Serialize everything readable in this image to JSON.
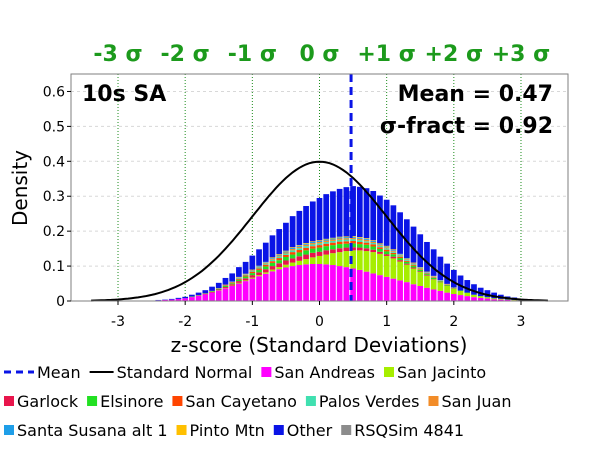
{
  "chart_data": {
    "type": "histogram",
    "xlabel": "z-score (Standard Deviations)",
    "ylabel": "Density",
    "xlim": [
      -3.7,
      3.7
    ],
    "ylim": [
      0,
      0.65
    ],
    "xticks": [
      -3,
      -2,
      -1,
      0,
      1,
      2,
      3
    ],
    "yticks": [
      0,
      0.1,
      0.2,
      0.3,
      0.4,
      0.5,
      0.6
    ],
    "bin_width": 0.1,
    "grid": "horizontal dashed, vertical dotted green at sigma levels",
    "sigma_labels": [
      {
        "z": -3,
        "text": "-3 σ"
      },
      {
        "z": -2,
        "text": "-2 σ"
      },
      {
        "z": -1,
        "text": "-1 σ"
      },
      {
        "z": 0,
        "text": "0 σ"
      },
      {
        "z": 1,
        "text": "+1 σ"
      },
      {
        "z": 2,
        "text": "+2 σ"
      },
      {
        "z": 3,
        "text": "+3 σ"
      }
    ],
    "annotations": {
      "period": "10s SA",
      "mean": "Mean = 0.47",
      "sigma": "σ-fract = 0.92"
    },
    "mean_value": 0.47,
    "curve": "Standard Normal",
    "bins_x": [
      -2.4,
      -2.3,
      -2.2,
      -2.1,
      -2.0,
      -1.9,
      -1.8,
      -1.7,
      -1.6,
      -1.5,
      -1.4,
      -1.3,
      -1.2,
      -1.1,
      -1.0,
      -0.9,
      -0.8,
      -0.7,
      -0.6,
      -0.5,
      -0.4,
      -0.3,
      -0.2,
      -0.1,
      0.0,
      0.1,
      0.2,
      0.3,
      0.4,
      0.5,
      0.6,
      0.7,
      0.8,
      0.9,
      1.0,
      1.1,
      1.2,
      1.3,
      1.4,
      1.5,
      1.6,
      1.7,
      1.8,
      1.9,
      2.0,
      2.1,
      2.2,
      2.3,
      2.4,
      2.5,
      2.6,
      2.7,
      2.8,
      2.9
    ],
    "series": [
      {
        "name": "San Andreas",
        "color": "#ff00ff",
        "values": [
          0.002,
          0.003,
          0.004,
          0.006,
          0.008,
          0.011,
          0.015,
          0.019,
          0.024,
          0.03,
          0.036,
          0.043,
          0.05,
          0.057,
          0.064,
          0.071,
          0.078,
          0.085,
          0.091,
          0.096,
          0.1,
          0.103,
          0.105,
          0.106,
          0.106,
          0.105,
          0.103,
          0.1,
          0.097,
          0.093,
          0.089,
          0.084,
          0.079,
          0.074,
          0.069,
          0.064,
          0.059,
          0.054,
          0.048,
          0.043,
          0.038,
          0.033,
          0.029,
          0.024,
          0.02,
          0.017,
          0.014,
          0.011,
          0.009,
          0.007,
          0.005,
          0.004,
          0.003,
          0.002
        ]
      },
      {
        "name": "San Jacinto",
        "color": "#a6ee00",
        "values": [
          0,
          0,
          0,
          0,
          0,
          0,
          0,
          0,
          0,
          0.001,
          0.001,
          0.001,
          0.002,
          0.002,
          0.003,
          0.003,
          0.004,
          0.005,
          0.006,
          0.008,
          0.01,
          0.012,
          0.015,
          0.019,
          0.023,
          0.028,
          0.034,
          0.04,
          0.046,
          0.052,
          0.056,
          0.059,
          0.061,
          0.061,
          0.06,
          0.058,
          0.054,
          0.05,
          0.045,
          0.04,
          0.034,
          0.029,
          0.024,
          0.019,
          0.015,
          0.012,
          0.009,
          0.007,
          0.005,
          0.004,
          0.003,
          0.002,
          0.001,
          0.001
        ]
      },
      {
        "name": "Garlock",
        "color": "#e8154c",
        "values": [
          0,
          0,
          0,
          0,
          0,
          0.001,
          0.001,
          0.001,
          0.002,
          0.002,
          0.003,
          0.004,
          0.005,
          0.006,
          0.007,
          0.008,
          0.009,
          0.01,
          0.011,
          0.012,
          0.012,
          0.013,
          0.013,
          0.013,
          0.012,
          0.012,
          0.011,
          0.011,
          0.01,
          0.009,
          0.008,
          0.008,
          0.007,
          0.006,
          0.005,
          0.005,
          0.004,
          0.003,
          0.003,
          0.002,
          0.002,
          0.001,
          0.001,
          0.001,
          0.001,
          0,
          0,
          0,
          0,
          0,
          0,
          0,
          0,
          0
        ]
      },
      {
        "name": "Elsinore",
        "color": "#22e022",
        "values": [
          0,
          0,
          0,
          0,
          0,
          0.001,
          0.001,
          0.001,
          0.002,
          0.002,
          0.003,
          0.003,
          0.004,
          0.005,
          0.006,
          0.007,
          0.008,
          0.009,
          0.009,
          0.01,
          0.011,
          0.011,
          0.012,
          0.012,
          0.012,
          0.012,
          0.012,
          0.012,
          0.011,
          0.011,
          0.01,
          0.01,
          0.009,
          0.008,
          0.008,
          0.007,
          0.006,
          0.005,
          0.005,
          0.004,
          0.003,
          0.003,
          0.002,
          0.002,
          0.001,
          0.001,
          0.001,
          0,
          0,
          0,
          0,
          0,
          0,
          0
        ]
      },
      {
        "name": "San Cayetano",
        "color": "#ff4500",
        "values": [
          0,
          0,
          0,
          0,
          0,
          0,
          0,
          0.001,
          0.001,
          0.001,
          0.002,
          0.002,
          0.003,
          0.003,
          0.004,
          0.004,
          0.005,
          0.005,
          0.006,
          0.006,
          0.007,
          0.007,
          0.007,
          0.007,
          0.007,
          0.007,
          0.007,
          0.007,
          0.007,
          0.007,
          0.006,
          0.006,
          0.006,
          0.005,
          0.005,
          0.004,
          0.004,
          0.003,
          0.003,
          0.002,
          0.002,
          0.002,
          0.001,
          0.001,
          0.001,
          0,
          0,
          0,
          0,
          0,
          0,
          0,
          0,
          0
        ]
      },
      {
        "name": "Palos Verdes",
        "color": "#40e0b0",
        "values": [
          0,
          0,
          0,
          0,
          0,
          0,
          0,
          0,
          0,
          0.001,
          0.001,
          0.001,
          0.002,
          0.002,
          0.002,
          0.003,
          0.003,
          0.004,
          0.004,
          0.004,
          0.005,
          0.005,
          0.005,
          0.005,
          0.005,
          0.005,
          0.005,
          0.005,
          0.005,
          0.005,
          0.005,
          0.004,
          0.004,
          0.004,
          0.004,
          0.003,
          0.003,
          0.003,
          0.002,
          0.002,
          0.002,
          0.001,
          0.001,
          0.001,
          0.001,
          0,
          0,
          0,
          0,
          0,
          0,
          0,
          0,
          0
        ]
      },
      {
        "name": "San Juan",
        "color": "#f28c28",
        "values": [
          0,
          0,
          0,
          0,
          0,
          0,
          0,
          0,
          0,
          0,
          0.001,
          0.001,
          0.001,
          0.001,
          0.002,
          0.002,
          0.002,
          0.003,
          0.003,
          0.003,
          0.004,
          0.004,
          0.004,
          0.004,
          0.004,
          0.004,
          0.004,
          0.004,
          0.004,
          0.004,
          0.004,
          0.004,
          0.003,
          0.003,
          0.003,
          0.003,
          0.002,
          0.002,
          0.002,
          0.002,
          0.001,
          0.001,
          0.001,
          0.001,
          0,
          0,
          0,
          0,
          0,
          0,
          0,
          0,
          0,
          0
        ]
      },
      {
        "name": "Santa Susana alt 1",
        "color": "#1e9ee8",
        "values": [
          0,
          0,
          0,
          0,
          0,
          0,
          0,
          0,
          0,
          0,
          0,
          0.001,
          0.001,
          0.001,
          0.001,
          0.002,
          0.002,
          0.002,
          0.002,
          0.003,
          0.003,
          0.003,
          0.003,
          0.003,
          0.003,
          0.003,
          0.003,
          0.003,
          0.003,
          0.003,
          0.003,
          0.003,
          0.003,
          0.002,
          0.002,
          0.002,
          0.002,
          0.002,
          0.001,
          0.001,
          0.001,
          0.001,
          0.001,
          0,
          0,
          0,
          0,
          0,
          0,
          0,
          0,
          0,
          0,
          0
        ]
      },
      {
        "name": "Pinto Mtn",
        "color": "#ffc000",
        "values": [
          0,
          0,
          0,
          0,
          0,
          0,
          0,
          0,
          0,
          0,
          0,
          0,
          0.001,
          0.001,
          0.001,
          0.001,
          0.001,
          0.002,
          0.002,
          0.002,
          0.002,
          0.002,
          0.002,
          0.002,
          0.002,
          0.002,
          0.002,
          0.002,
          0.002,
          0.002,
          0.002,
          0.002,
          0.002,
          0.002,
          0.002,
          0.002,
          0.001,
          0.001,
          0.001,
          0.001,
          0.001,
          0.001,
          0,
          0,
          0,
          0,
          0,
          0,
          0,
          0,
          0,
          0,
          0,
          0
        ]
      },
      {
        "name": "Other",
        "color": "#0a14e6",
        "values": [
          0.001,
          0.001,
          0.002,
          0.003,
          0.004,
          0.005,
          0.007,
          0.009,
          0.012,
          0.015,
          0.019,
          0.023,
          0.028,
          0.034,
          0.04,
          0.047,
          0.055,
          0.063,
          0.072,
          0.08,
          0.089,
          0.098,
          0.106,
          0.114,
          0.121,
          0.128,
          0.133,
          0.137,
          0.141,
          0.143,
          0.144,
          0.143,
          0.141,
          0.137,
          0.132,
          0.126,
          0.119,
          0.111,
          0.103,
          0.094,
          0.085,
          0.076,
          0.067,
          0.058,
          0.05,
          0.043,
          0.036,
          0.03,
          0.024,
          0.02,
          0.016,
          0.012,
          0.009,
          0.007
        ]
      }
    ],
    "legend": [
      {
        "label": "Mean",
        "kind": "dashline",
        "color": "#0a14e6"
      },
      {
        "label": "Standard Normal",
        "kind": "line",
        "color": "#000000"
      },
      {
        "label": "San Andreas",
        "kind": "box",
        "color": "#ff00ff"
      },
      {
        "label": "San Jacinto",
        "kind": "box",
        "color": "#a6ee00"
      },
      {
        "label": "Garlock",
        "kind": "box",
        "color": "#e8154c"
      },
      {
        "label": "Elsinore",
        "kind": "box",
        "color": "#22e022"
      },
      {
        "label": "San Cayetano",
        "kind": "box",
        "color": "#ff4500"
      },
      {
        "label": "Palos Verdes",
        "kind": "box",
        "color": "#40e0b0"
      },
      {
        "label": "San Juan",
        "kind": "box",
        "color": "#f28c28"
      },
      {
        "label": "Santa Susana alt 1",
        "kind": "box",
        "color": "#1e9ee8"
      },
      {
        "label": "Pinto Mtn",
        "kind": "box",
        "color": "#ffc000"
      },
      {
        "label": "Other",
        "kind": "box",
        "color": "#0a14e6"
      },
      {
        "label": "RSQSim 4841",
        "kind": "box",
        "color": "#8c8c8c"
      }
    ]
  }
}
